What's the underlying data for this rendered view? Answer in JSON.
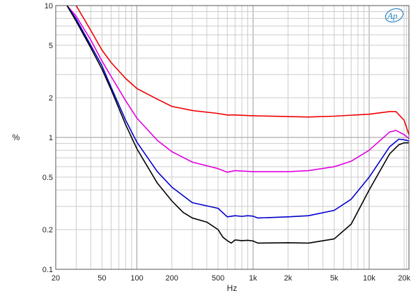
{
  "chart_data": {
    "type": "line",
    "xlabel": "Hz",
    "ylabel": "%",
    "x_scale": "log",
    "y_scale": "log",
    "xlim": [
      20,
      22000
    ],
    "ylim": [
      0.1,
      10
    ],
    "x_ticks": [
      {
        "value": 20,
        "label": "20"
      },
      {
        "value": 50,
        "label": "50"
      },
      {
        "value": 100,
        "label": "100"
      },
      {
        "value": 200,
        "label": "200"
      },
      {
        "value": 500,
        "label": "500"
      },
      {
        "value": 1000,
        "label": "1k"
      },
      {
        "value": 2000,
        "label": "2k"
      },
      {
        "value": 5000,
        "label": "5k"
      },
      {
        "value": 10000,
        "label": "10k"
      },
      {
        "value": 20000,
        "label": "20k"
      }
    ],
    "y_ticks": [
      {
        "value": 10,
        "label": "10"
      },
      {
        "value": 5,
        "label": "5"
      },
      {
        "value": 2,
        "label": "2"
      },
      {
        "value": 1,
        "label": "1"
      },
      {
        "value": 0.5,
        "label": "0.5"
      },
      {
        "value": 0.2,
        "label": "0.2"
      },
      {
        "value": 0.1,
        "label": "0.1"
      }
    ],
    "grid": true,
    "legend": "none",
    "logo": "Ap",
    "series": [
      {
        "color": "#ee0000",
        "x": [
          30,
          40,
          50,
          60,
          80,
          100,
          150,
          200,
          300,
          500,
          600,
          700,
          1000,
          2000,
          3000,
          5000,
          10000,
          15000,
          17000,
          20000,
          22000
        ],
        "y": [
          10,
          6.5,
          4.6,
          3.7,
          2.8,
          2.35,
          1.95,
          1.72,
          1.6,
          1.52,
          1.48,
          1.48,
          1.46,
          1.44,
          1.43,
          1.45,
          1.5,
          1.57,
          1.57,
          1.35,
          1.05
        ]
      },
      {
        "color": "#e000e0",
        "x": [
          25,
          30,
          40,
          50,
          60,
          80,
          100,
          150,
          200,
          300,
          500,
          600,
          700,
          1000,
          2000,
          3000,
          5000,
          7000,
          10000,
          15000,
          17000,
          20000,
          22000
        ],
        "y": [
          10,
          8.3,
          5.5,
          3.8,
          2.9,
          1.9,
          1.4,
          0.95,
          0.78,
          0.65,
          0.58,
          0.545,
          0.56,
          0.55,
          0.55,
          0.56,
          0.6,
          0.66,
          0.8,
          1.1,
          1.13,
          1.05,
          0.98
        ]
      },
      {
        "color": "#0000cc",
        "x": [
          25,
          30,
          40,
          50,
          60,
          80,
          100,
          150,
          200,
          300,
          500,
          600,
          700,
          800,
          900,
          1000,
          1100,
          2000,
          3000,
          5000,
          7000,
          10000,
          15000,
          18000,
          20000,
          22000
        ],
        "y": [
          10,
          7.9,
          5.0,
          3.5,
          2.4,
          1.35,
          0.92,
          0.55,
          0.42,
          0.32,
          0.29,
          0.25,
          0.255,
          0.252,
          0.255,
          0.253,
          0.245,
          0.25,
          0.255,
          0.28,
          0.34,
          0.5,
          0.85,
          0.97,
          0.96,
          0.94
        ]
      },
      {
        "color": "#000000",
        "x": [
          25,
          30,
          40,
          50,
          60,
          80,
          100,
          150,
          200,
          250,
          300,
          400,
          500,
          550,
          600,
          650,
          700,
          800,
          900,
          1000,
          1100,
          2000,
          3000,
          5000,
          7000,
          10000,
          15000,
          18000,
          20000,
          22000
        ],
        "y": [
          10,
          7.6,
          4.8,
          3.3,
          2.3,
          1.25,
          0.82,
          0.45,
          0.33,
          0.27,
          0.245,
          0.228,
          0.2,
          0.175,
          0.165,
          0.158,
          0.167,
          0.165,
          0.166,
          0.164,
          0.158,
          0.159,
          0.158,
          0.17,
          0.22,
          0.4,
          0.75,
          0.88,
          0.91,
          0.91
        ]
      }
    ]
  }
}
